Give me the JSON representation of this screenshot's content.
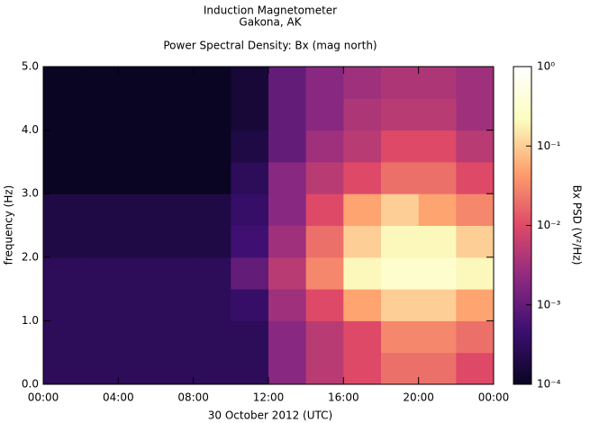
{
  "chart_data": {
    "type": "heatmap",
    "title": "Induction Magnetometer",
    "subtitle": "Gakona, AK",
    "plot_title": "Power Spectral Density: Bx (mag north)",
    "x_label": "30 October 2012 (UTC)",
    "y_label": "frequency (Hz)",
    "colorbar_label": "Bx PSD (V²/Hz)",
    "xlim": [
      0,
      24
    ],
    "xticks": [
      {
        "value": 0,
        "label": "00:00"
      },
      {
        "value": 4,
        "label": "04:00"
      },
      {
        "value": 8,
        "label": "08:00"
      },
      {
        "value": 12,
        "label": "12:00"
      },
      {
        "value": 16,
        "label": "16:00"
      },
      {
        "value": 20,
        "label": "20:00"
      },
      {
        "value": 24,
        "label": "00:00"
      }
    ],
    "ylim": [
      0,
      5
    ],
    "yticks": [
      {
        "value": 0,
        "label": "0.0"
      },
      {
        "value": 1,
        "label": "1.0"
      },
      {
        "value": 2,
        "label": "2.0"
      },
      {
        "value": 3,
        "label": "3.0"
      },
      {
        "value": 4,
        "label": "4.0"
      },
      {
        "value": 5,
        "label": "5.0"
      }
    ],
    "xbins": [
      0,
      2,
      4,
      6,
      8,
      10,
      12,
      14,
      16,
      18,
      20,
      22,
      24
    ],
    "ybins": [
      0,
      0.5,
      1,
      1.5,
      2,
      2.5,
      3,
      3.5,
      4,
      4.5,
      5
    ],
    "z": [
      [
        0.0003,
        0.0003,
        0.0003,
        0.0003,
        0.0003,
        0.0003,
        0.002,
        0.005,
        0.01,
        0.02,
        0.02,
        0.01
      ],
      [
        0.0003,
        0.0003,
        0.0003,
        0.0003,
        0.0003,
        0.0003,
        0.002,
        0.005,
        0.01,
        0.03,
        0.03,
        0.02
      ],
      [
        0.0003,
        0.0003,
        0.0003,
        0.0003,
        0.0003,
        0.0004,
        0.003,
        0.01,
        0.05,
        0.1,
        0.1,
        0.05
      ],
      [
        0.0003,
        0.0003,
        0.0003,
        0.0003,
        0.0003,
        0.001,
        0.005,
        0.03,
        0.2,
        0.3,
        0.3,
        0.2
      ],
      [
        0.0002,
        0.0002,
        0.0002,
        0.0002,
        0.0002,
        0.0005,
        0.003,
        0.02,
        0.1,
        0.2,
        0.2,
        0.1
      ],
      [
        0.0002,
        0.0002,
        0.0002,
        0.0002,
        0.0002,
        0.0004,
        0.002,
        0.01,
        0.05,
        0.1,
        0.05,
        0.03
      ],
      [
        0.0001,
        0.0001,
        0.0001,
        0.0001,
        0.0001,
        0.0003,
        0.002,
        0.005,
        0.01,
        0.02,
        0.02,
        0.01
      ],
      [
        0.0001,
        0.0001,
        0.0001,
        0.0001,
        0.0001,
        0.0002,
        0.001,
        0.003,
        0.005,
        0.01,
        0.01,
        0.005
      ],
      [
        0.0001,
        0.0001,
        0.0001,
        0.0001,
        0.0001,
        0.00015,
        0.001,
        0.002,
        0.004,
        0.005,
        0.005,
        0.003
      ],
      [
        0.0001,
        0.0001,
        0.0001,
        0.0001,
        0.0001,
        0.00015,
        0.001,
        0.002,
        0.003,
        0.004,
        0.004,
        0.003
      ]
    ],
    "zlim": [
      0.0001,
      1
    ],
    "zscale": "log",
    "zticks": [
      {
        "value": 0.0001,
        "label": "10⁻⁴"
      },
      {
        "value": 0.001,
        "label": "10⁻³"
      },
      {
        "value": 0.01,
        "label": "10⁻²"
      },
      {
        "value": 0.1,
        "label": "10⁻¹"
      },
      {
        "value": 1,
        "label": "10⁰"
      }
    ],
    "colormap": [
      "#0a0522",
      "#3b0f70",
      "#8c2981",
      "#de4968",
      "#fe9f6d",
      "#fcfdbf",
      "#ffffff"
    ]
  }
}
